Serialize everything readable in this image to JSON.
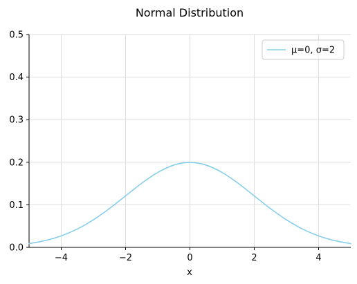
{
  "chart_data": {
    "type": "line",
    "title": "Normal Distribution",
    "xlabel": "x",
    "ylabel": "",
    "xlim": [
      -5,
      5
    ],
    "ylim": [
      0,
      0.5
    ],
    "x_ticks": [
      -4,
      -2,
      0,
      2,
      4
    ],
    "x_tick_labels": [
      "−4",
      "−2",
      "0",
      "2",
      "4"
    ],
    "y_ticks": [
      0.0,
      0.1,
      0.2,
      0.3,
      0.4,
      0.5
    ],
    "y_tick_labels": [
      "0.0",
      "0.1",
      "0.2",
      "0.3",
      "0.4",
      "0.5"
    ],
    "grid": true,
    "legend_position": "top-right",
    "series": [
      {
        "name": "μ=0, σ=2",
        "color": "#87ceeb",
        "x": [
          -5,
          -4.5,
          -4,
          -3.5,
          -3,
          -2.5,
          -2,
          -1.5,
          -1,
          -0.5,
          0,
          0.5,
          1,
          1.5,
          2,
          2.5,
          3,
          3.5,
          4,
          4.5,
          5
        ],
        "y": [
          0.0088,
          0.0159,
          0.027,
          0.0431,
          0.0648,
          0.0913,
          0.121,
          0.1506,
          0.176,
          0.1933,
          0.1995,
          0.1933,
          0.176,
          0.1506,
          0.121,
          0.0913,
          0.0648,
          0.0431,
          0.027,
          0.0159,
          0.0088
        ]
      }
    ]
  }
}
